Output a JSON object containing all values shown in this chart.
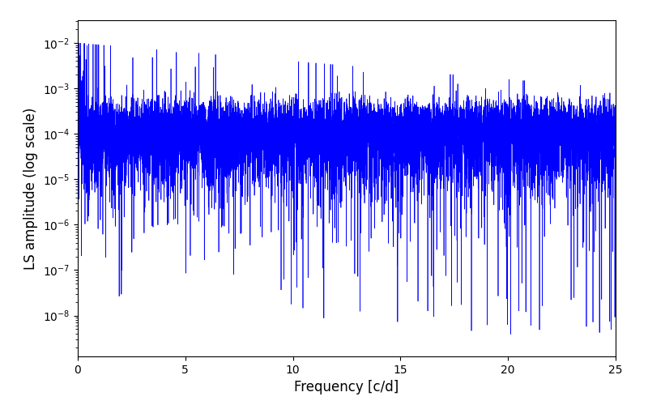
{
  "xlabel": "Frequency [c/d]",
  "ylabel": "LS amplitude (log scale)",
  "line_color": "#0000ff",
  "line_width": 0.5,
  "xlim": [
    0,
    25
  ],
  "ylim_log": [
    -8.9,
    -1.5
  ],
  "freq_max": 25.0,
  "n_points": 8000,
  "seed": 7,
  "background_color": "#ffffff",
  "figsize": [
    8.0,
    5.0
  ],
  "dpi": 100
}
